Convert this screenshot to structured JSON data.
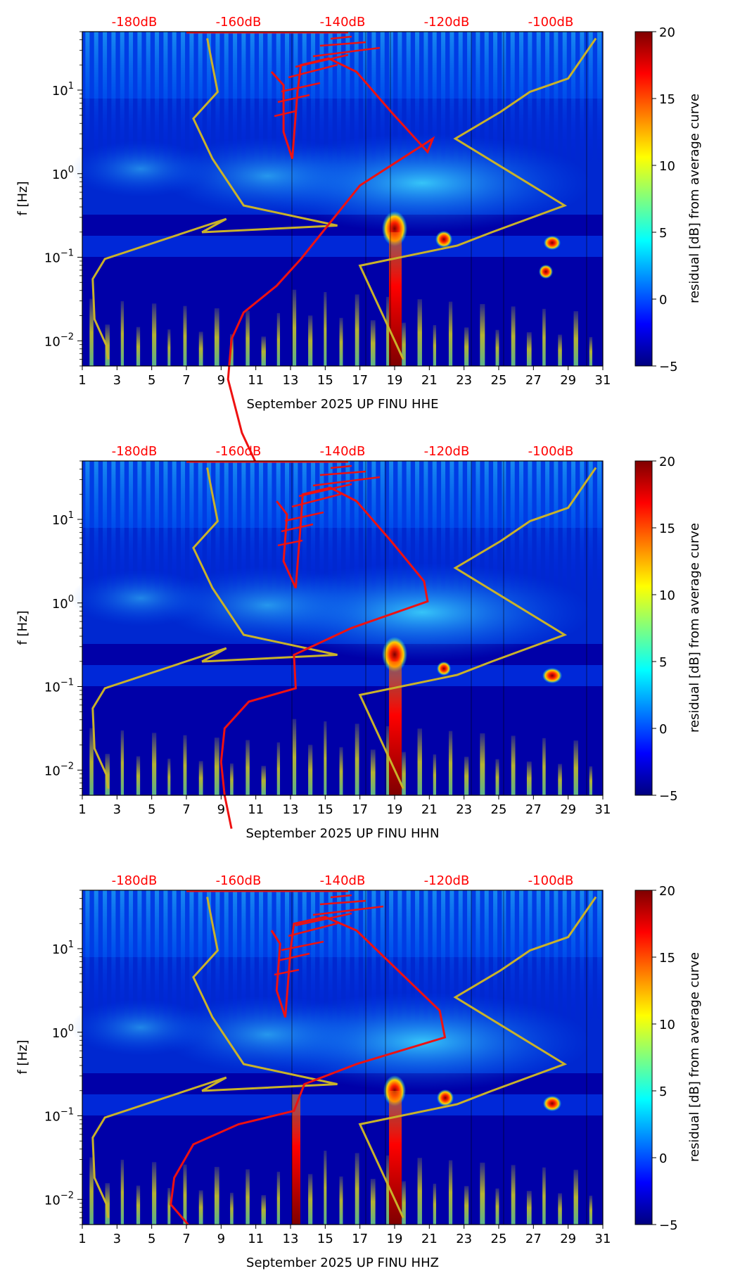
{
  "figure_title": "",
  "colors": {
    "red_curve": "#ee1111",
    "model_curve": "#c9b22a",
    "db_label": "#ff0000",
    "colormap": [
      "#00007f",
      "#0000ff",
      "#007fff",
      "#00ffff",
      "#7fff7f",
      "#ffff00",
      "#ff7f00",
      "#ff0000",
      "#7f0000"
    ]
  },
  "chart_data": [
    {
      "type": "heatmap",
      "component": "HHE",
      "xlabel": "September 2025 UP FINU  HHE",
      "ylabel": "f [Hz]",
      "x_ticks": [
        "1",
        "3",
        "5",
        "7",
        "9",
        "11",
        "13",
        "15",
        "17",
        "19",
        "21",
        "23",
        "25",
        "27",
        "29",
        "31"
      ],
      "x_range": [
        1,
        31
      ],
      "y_scale": "log",
      "y_range": [
        0.005,
        50
      ],
      "y_ticks": [
        {
          "mant": "10",
          "exp": "1"
        },
        {
          "mant": "10",
          "exp": "0"
        },
        {
          "mant": "10",
          "exp": "−1"
        },
        {
          "mant": "10",
          "exp": "−2"
        }
      ],
      "db_labels": [
        "-180dB",
        "-160dB",
        "-140dB",
        "-120dB",
        "-100dB"
      ],
      "colorbar": {
        "label": "residual [dB] from average curve",
        "ticks": [
          "20",
          "15",
          "10",
          "5",
          "0",
          "−5"
        ],
        "range": [
          -5,
          20
        ]
      },
      "series": [
        {
          "name": "average PSD",
          "points": [
            [
              11.9,
              0.6
            ],
            [
              12.6,
              0.8
            ],
            [
              12.6,
              1.5
            ],
            [
              13.1,
              1.9
            ],
            [
              13.4,
              0.9
            ],
            [
              13.6,
              0.5
            ],
            [
              15.2,
              0.4
            ],
            [
              16.8,
              0.6
            ],
            [
              18.8,
              1.2
            ],
            [
              20.9,
              1.8
            ],
            [
              21.2,
              1.6
            ],
            [
              17.0,
              2.3
            ],
            [
              13.6,
              3.4
            ],
            [
              12.2,
              3.8
            ],
            [
              10.3,
              4.2
            ],
            [
              9.6,
              4.6
            ],
            [
              9.4,
              5.2
            ],
            [
              10.2,
              6.0
            ],
            [
              11.1,
              6.5
            ]
          ]
        },
        {
          "name": "noise model",
          "points": [
            [
              8.2,
              0.1
            ],
            [
              8.8,
              0.9
            ],
            [
              7.4,
              1.3
            ],
            [
              8.5,
              1.9
            ],
            [
              10.3,
              2.6
            ],
            [
              15.7,
              2.9
            ],
            [
              7.9,
              3.0
            ],
            [
              9.3,
              2.8
            ],
            [
              2.3,
              3.4
            ],
            [
              1.6,
              3.7
            ],
            [
              1.7,
              4.3
            ],
            [
              2.4,
              4.7
            ],
            [
              2.5,
              4.9
            ]
          ]
        },
        {
          "name": "noise model 2",
          "points": [
            [
              30.6,
              0.1
            ],
            [
              29.0,
              0.7
            ],
            [
              26.8,
              0.9
            ],
            [
              25.1,
              1.2
            ],
            [
              22.5,
              1.6
            ],
            [
              28.8,
              2.6
            ],
            [
              24.6,
              3.0
            ],
            [
              22.6,
              3.2
            ],
            [
              17.0,
              3.5
            ],
            [
              19.5,
              4.9
            ]
          ]
        }
      ]
    },
    {
      "type": "heatmap",
      "component": "HHN",
      "xlabel": "September 2025 UP FINU  HHN",
      "ylabel": "f [Hz]",
      "x_ticks": [
        "1",
        "3",
        "5",
        "7",
        "9",
        "11",
        "13",
        "15",
        "17",
        "19",
        "21",
        "23",
        "25",
        "27",
        "29",
        "31"
      ],
      "x_range": [
        1,
        31
      ],
      "y_scale": "log",
      "y_range": [
        0.005,
        50
      ],
      "y_ticks": [
        {
          "mant": "10",
          "exp": "1"
        },
        {
          "mant": "10",
          "exp": "0"
        },
        {
          "mant": "10",
          "exp": "−1"
        },
        {
          "mant": "10",
          "exp": "−2"
        }
      ],
      "db_labels": [
        "-180dB",
        "-160dB",
        "-140dB",
        "-120dB",
        "-100dB"
      ],
      "colorbar": {
        "label": "residual [dB] from average curve",
        "ticks": [
          "20",
          "15",
          "10",
          "5",
          "0",
          "−5"
        ],
        "range": [
          -5,
          20
        ]
      },
      "series": [
        {
          "name": "average PSD",
          "points": [
            [
              12.2,
              0.6
            ],
            [
              12.8,
              0.8
            ],
            [
              12.6,
              1.5
            ],
            [
              13.3,
              1.9
            ],
            [
              13.6,
              0.9
            ],
            [
              13.7,
              0.5
            ],
            [
              15.3,
              0.4
            ],
            [
              16.8,
              0.6
            ],
            [
              18.8,
              1.2
            ],
            [
              20.7,
              1.8
            ],
            [
              20.9,
              2.1
            ],
            [
              16.5,
              2.5
            ],
            [
              13.2,
              2.9
            ],
            [
              13.3,
              3.4
            ],
            [
              10.6,
              3.6
            ],
            [
              9.2,
              4.0
            ],
            [
              9.0,
              4.5
            ],
            [
              9.2,
              5.0
            ],
            [
              9.6,
              5.5
            ]
          ]
        },
        {
          "name": "noise model",
          "points": [
            [
              8.2,
              0.1
            ],
            [
              8.8,
              0.9
            ],
            [
              7.4,
              1.3
            ],
            [
              8.5,
              1.9
            ],
            [
              10.3,
              2.6
            ],
            [
              15.7,
              2.9
            ],
            [
              7.9,
              3.0
            ],
            [
              9.3,
              2.8
            ],
            [
              2.3,
              3.4
            ],
            [
              1.6,
              3.7
            ],
            [
              1.7,
              4.3
            ],
            [
              2.4,
              4.7
            ],
            [
              2.5,
              4.9
            ]
          ]
        },
        {
          "name": "noise model 2",
          "points": [
            [
              30.6,
              0.1
            ],
            [
              29.0,
              0.7
            ],
            [
              26.8,
              0.9
            ],
            [
              25.1,
              1.2
            ],
            [
              22.5,
              1.6
            ],
            [
              28.8,
              2.6
            ],
            [
              24.6,
              3.0
            ],
            [
              22.6,
              3.2
            ],
            [
              17.0,
              3.5
            ],
            [
              19.5,
              4.9
            ]
          ]
        }
      ]
    },
    {
      "type": "heatmap",
      "component": "HHZ",
      "xlabel": "September 2025 UP FINU  HHZ",
      "ylabel": "f [Hz]",
      "x_ticks": [
        "1",
        "3",
        "5",
        "7",
        "9",
        "11",
        "13",
        "15",
        "17",
        "19",
        "21",
        "23",
        "25",
        "27",
        "29",
        "31"
      ],
      "x_range": [
        1,
        31
      ],
      "y_scale": "log",
      "y_range": [
        0.005,
        50
      ],
      "y_ticks": [
        {
          "mant": "10",
          "exp": "1"
        },
        {
          "mant": "10",
          "exp": "0"
        },
        {
          "mant": "10",
          "exp": "−1"
        },
        {
          "mant": "10",
          "exp": "−2"
        }
      ],
      "db_labels": [
        "-180dB",
        "-160dB",
        "-140dB",
        "-120dB",
        "-100dB"
      ],
      "colorbar": {
        "label": "residual [dB] from average curve",
        "ticks": [
          "20",
          "15",
          "10",
          "5",
          "0",
          "−5"
        ],
        "range": [
          -5,
          20
        ]
      },
      "series": [
        {
          "name": "average PSD",
          "points": [
            [
              11.9,
              0.6
            ],
            [
              12.4,
              0.8
            ],
            [
              12.2,
              1.5
            ],
            [
              12.7,
              1.9
            ],
            [
              13.0,
              0.9
            ],
            [
              13.2,
              0.5
            ],
            [
              15.0,
              0.4
            ],
            [
              16.8,
              0.6
            ],
            [
              19.2,
              1.2
            ],
            [
              21.6,
              1.8
            ],
            [
              21.9,
              2.2
            ],
            [
              16.8,
              2.6
            ],
            [
              13.8,
              2.9
            ],
            [
              13.2,
              3.3
            ],
            [
              10.0,
              3.5
            ],
            [
              7.4,
              3.8
            ],
            [
              6.3,
              4.3
            ],
            [
              6.1,
              4.7
            ],
            [
              7.1,
              5.0
            ]
          ]
        },
        {
          "name": "noise model",
          "points": [
            [
              8.2,
              0.1
            ],
            [
              8.8,
              0.9
            ],
            [
              7.4,
              1.3
            ],
            [
              8.5,
              1.9
            ],
            [
              10.3,
              2.6
            ],
            [
              15.7,
              2.9
            ],
            [
              7.9,
              3.0
            ],
            [
              9.3,
              2.8
            ],
            [
              2.3,
              3.4
            ],
            [
              1.6,
              3.7
            ],
            [
              1.7,
              4.3
            ],
            [
              2.4,
              4.7
            ],
            [
              2.5,
              4.9
            ]
          ]
        },
        {
          "name": "noise model 2",
          "points": [
            [
              30.6,
              0.1
            ],
            [
              29.0,
              0.7
            ],
            [
              26.8,
              0.9
            ],
            [
              25.1,
              1.2
            ],
            [
              22.5,
              1.6
            ],
            [
              28.8,
              2.6
            ],
            [
              24.6,
              3.0
            ],
            [
              22.6,
              3.2
            ],
            [
              17.0,
              3.5
            ],
            [
              19.5,
              4.9
            ]
          ]
        }
      ]
    }
  ]
}
